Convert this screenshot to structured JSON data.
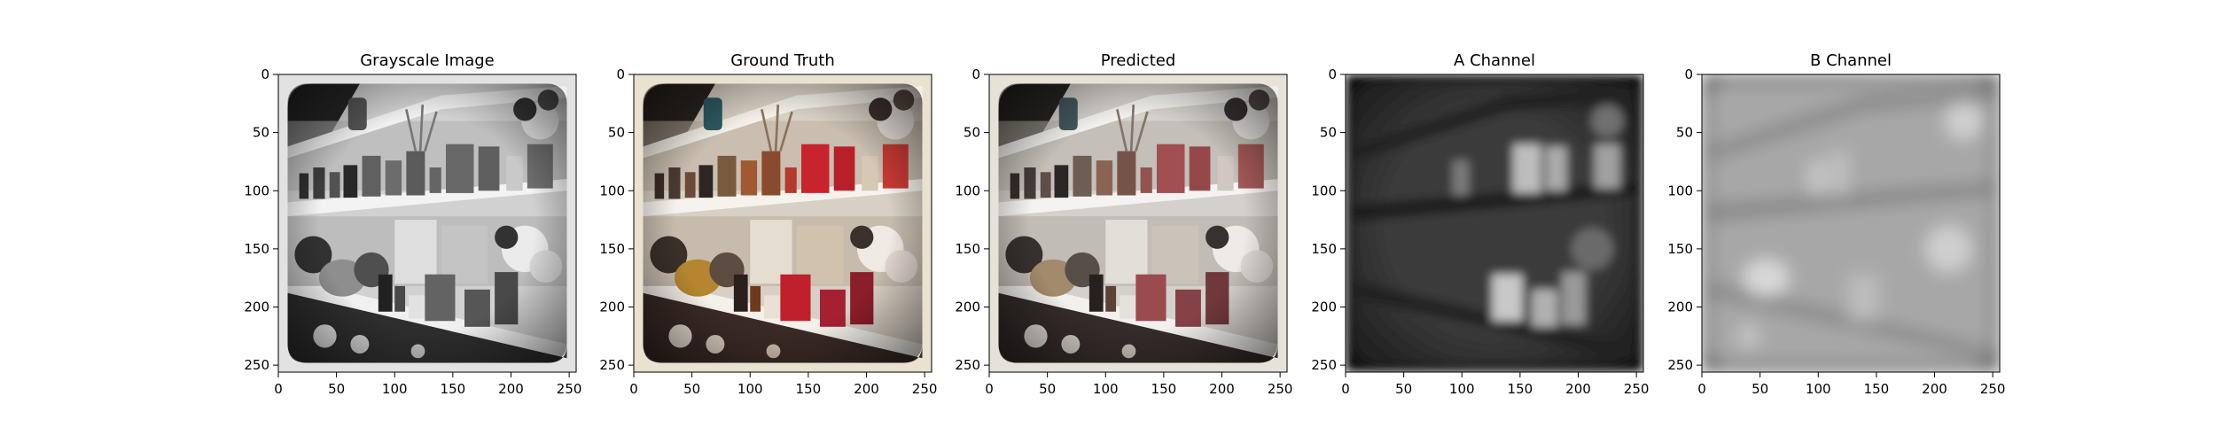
{
  "figure": {
    "panels": [
      {
        "title": "Grayscale Image",
        "mode": "gray"
      },
      {
        "title": "Ground Truth",
        "mode": "color"
      },
      {
        "title": "Predicted",
        "mode": "predicted"
      },
      {
        "title": "A Channel",
        "mode": "a-channel"
      },
      {
        "title": "B Channel",
        "mode": "b-channel"
      }
    ],
    "x_ticks": [
      "0",
      "50",
      "100",
      "150",
      "200",
      "250"
    ],
    "y_ticks": [
      "0",
      "50",
      "100",
      "150",
      "200",
      "250"
    ],
    "axis_range": [
      0,
      256
    ],
    "tick_values": [
      0,
      50,
      100,
      150,
      200,
      250
    ],
    "colors": {
      "background": "#ffffff",
      "frame": "#000000"
    }
  }
}
